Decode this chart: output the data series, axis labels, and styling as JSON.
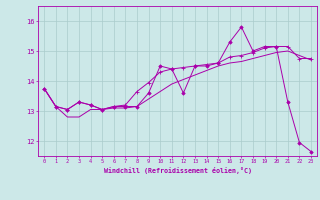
{
  "xlabel": "Windchill (Refroidissement éolien,°C)",
  "background_color": "#cce8e8",
  "line_color": "#aa00aa",
  "grid_color": "#aacccc",
  "x_ticks": [
    0,
    1,
    2,
    3,
    4,
    5,
    6,
    7,
    8,
    9,
    10,
    11,
    12,
    13,
    14,
    15,
    16,
    17,
    18,
    19,
    20,
    21,
    22,
    23
  ],
  "ylim": [
    11.5,
    16.5
  ],
  "xlim": [
    -0.5,
    23.5
  ],
  "yticks": [
    12,
    13,
    14,
    15,
    16
  ],
  "series1_x": [
    0,
    1,
    2,
    3,
    4,
    5,
    6,
    7,
    8,
    9,
    10,
    11,
    12,
    13,
    14,
    15,
    16,
    17,
    18,
    19,
    20,
    21,
    22,
    23
  ],
  "series1_y": [
    13.75,
    13.15,
    13.05,
    13.3,
    13.2,
    13.05,
    13.15,
    13.15,
    13.15,
    13.6,
    14.5,
    14.4,
    13.6,
    14.5,
    14.5,
    14.6,
    15.3,
    15.8,
    15.0,
    15.15,
    15.15,
    13.3,
    11.95,
    11.65
  ],
  "series2_x": [
    0,
    1,
    2,
    3,
    4,
    5,
    6,
    7,
    8,
    9,
    10,
    11,
    12,
    13,
    14,
    15,
    16,
    17,
    18,
    19,
    20,
    21,
    22,
    23
  ],
  "series2_y": [
    13.75,
    13.15,
    13.05,
    13.3,
    13.2,
    13.05,
    13.15,
    13.2,
    13.65,
    13.95,
    14.3,
    14.4,
    14.45,
    14.5,
    14.55,
    14.6,
    14.8,
    14.85,
    14.95,
    15.1,
    15.15,
    15.15,
    14.75,
    14.75
  ],
  "series3_x": [
    0,
    1,
    2,
    3,
    4,
    5,
    6,
    7,
    8,
    9,
    10,
    11,
    12,
    13,
    14,
    15,
    16,
    17,
    18,
    19,
    20,
    21,
    22,
    23
  ],
  "series3_y": [
    13.75,
    13.15,
    12.8,
    12.8,
    13.05,
    13.05,
    13.1,
    13.1,
    13.15,
    13.4,
    13.65,
    13.9,
    14.05,
    14.2,
    14.35,
    14.5,
    14.6,
    14.65,
    14.75,
    14.85,
    14.95,
    15.0,
    14.85,
    14.7
  ]
}
